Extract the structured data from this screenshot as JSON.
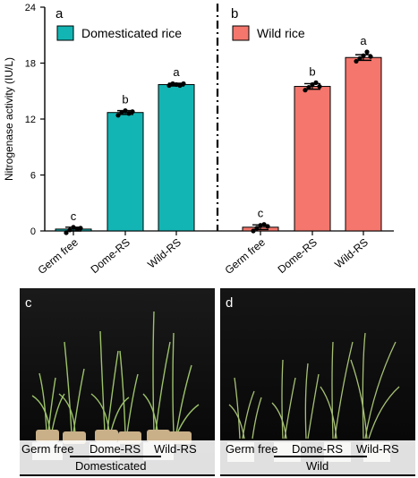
{
  "colors": {
    "domesticated": "#12B5B3",
    "wild": "#F4766C",
    "axis": "#000000",
    "photo_bg": "#050505"
  },
  "chart_data": [
    {
      "type": "bar",
      "panel": "a",
      "legend": "Domesticated rice",
      "ylabel": "Nitrogenase activity (IU/L)",
      "ylim": [
        0,
        24
      ],
      "yticks": [
        0,
        6,
        12,
        18,
        24
      ],
      "categories": [
        "Germ free",
        "Dome-RS",
        "Wild-RS"
      ],
      "values": [
        0.2,
        12.7,
        15.7
      ],
      "errors": [
        0.2,
        0.2,
        0.15
      ],
      "significance": [
        "c",
        "b",
        "a"
      ],
      "points": [
        [
          -0.2,
          0.1,
          0.4,
          0.2,
          0.3
        ],
        [
          12.4,
          12.7,
          12.9,
          12.6,
          12.8
        ],
        [
          15.6,
          15.8,
          15.7,
          15.6,
          15.8
        ]
      ],
      "color": "#12B5B3"
    },
    {
      "type": "bar",
      "panel": "b",
      "legend": "Wild rice",
      "ylim": [
        0,
        24
      ],
      "categories": [
        "Germ free",
        "Dome-RS",
        "Wild-RS"
      ],
      "values": [
        0.4,
        15.5,
        18.6
      ],
      "errors": [
        0.25,
        0.3,
        0.3
      ],
      "significance": [
        "c",
        "b",
        "a"
      ],
      "points": [
        [
          0.0,
          0.3,
          0.6,
          0.7,
          0.5
        ],
        [
          15.1,
          15.4,
          15.7,
          15.9,
          15.5
        ],
        [
          18.2,
          18.5,
          18.8,
          19.2,
          18.7
        ]
      ],
      "color": "#F4766C"
    }
  ],
  "photos": [
    {
      "panel": "c",
      "labels": [
        "Germ free",
        "Dome-RS",
        "Wild-RS"
      ],
      "group": "Domesticated"
    },
    {
      "panel": "d",
      "labels": [
        "Germ free",
        "Dome-RS",
        "Wild-RS"
      ],
      "group": "Wild"
    }
  ]
}
